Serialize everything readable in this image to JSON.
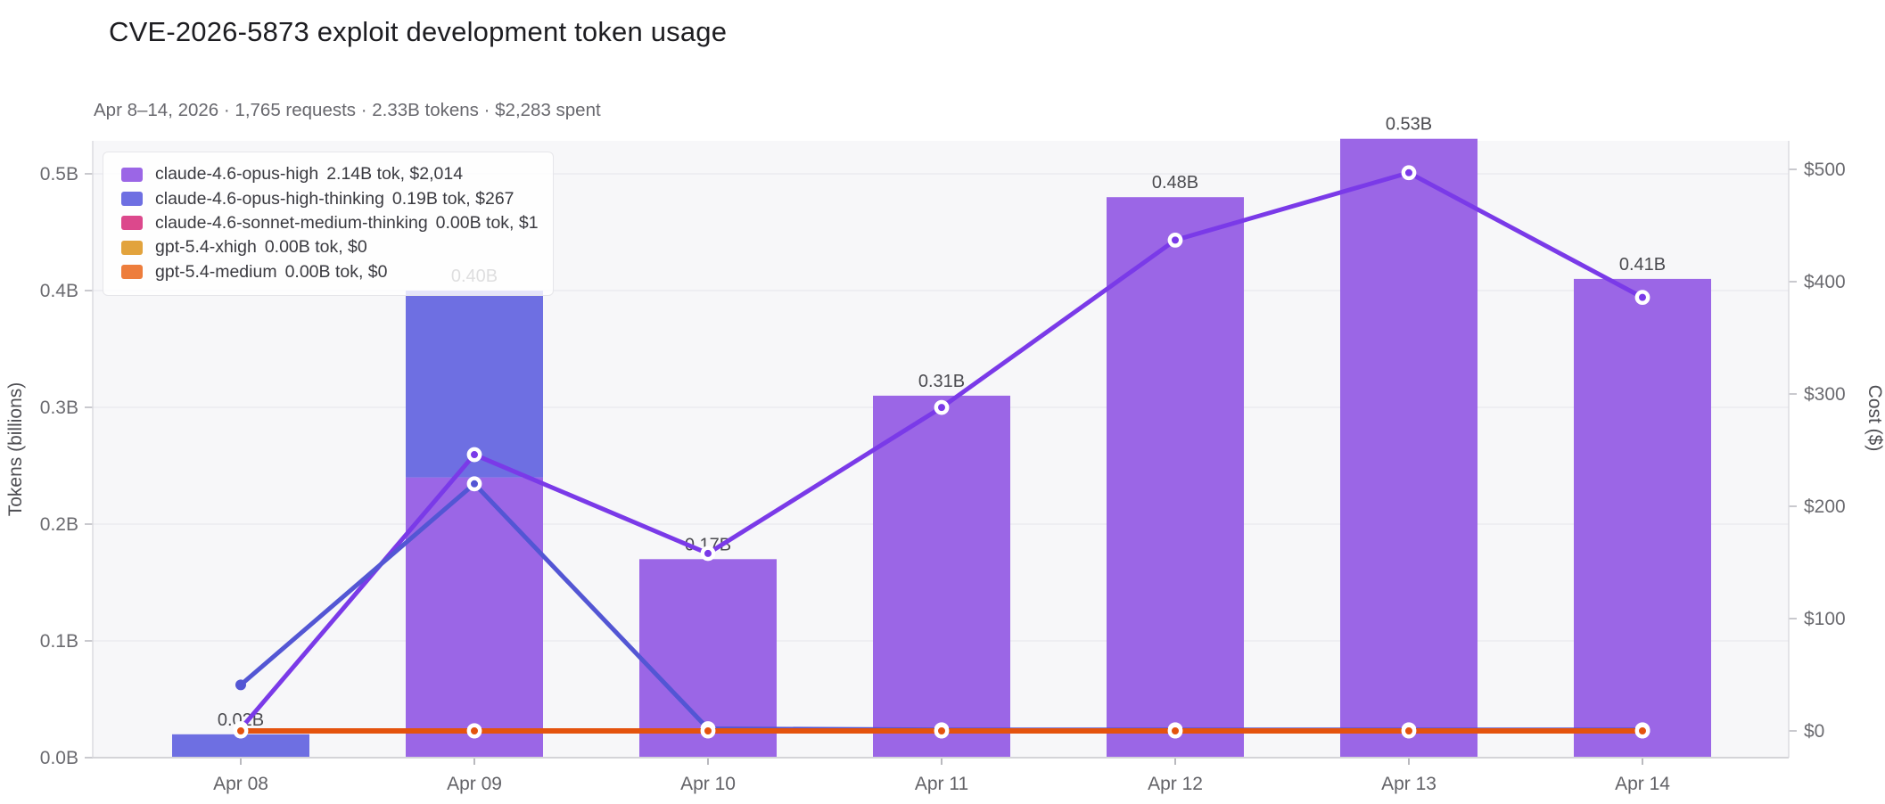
{
  "chart_data": {
    "type": "bar+line",
    "title": "CVE-2026-5873 exploit development token usage",
    "subtitle": "Apr 8–14, 2026  ·  1,765 requests  ·  2.33B tokens  ·  $2,283 spent",
    "categories": [
      "Apr 08",
      "Apr 09",
      "Apr 10",
      "Apr 11",
      "Apr 12",
      "Apr 13",
      "Apr 14"
    ],
    "bar_total_labels": [
      "0.02B",
      "0.40B",
      "0.17B",
      "0.31B",
      "0.48B",
      "0.53B",
      "0.41B"
    ],
    "y_left": {
      "label": "Tokens (billions)",
      "ticks": [
        "0.0B",
        "0.1B",
        "0.2B",
        "0.3B",
        "0.4B",
        "0.5B"
      ],
      "tick_values": [
        0.0,
        0.1,
        0.2,
        0.3,
        0.4,
        0.5
      ],
      "unit": "billions of tokens",
      "grid": true
    },
    "y_right": {
      "label": "Cost ($)",
      "ticks": [
        "$0",
        "$100",
        "$200",
        "$300",
        "$400",
        "$500"
      ],
      "tick_values": [
        0,
        100,
        200,
        300,
        400,
        500
      ],
      "unit": "USD",
      "grid": false
    },
    "legend_position": "top-left",
    "series": [
      {
        "name": "claude-4.6-opus-high",
        "legend_usage": "2.14B tok, $2,014",
        "bar_color": "#9b66e6",
        "line_color": "#7a3ae8",
        "tokens_billions": [
          0.0,
          0.24,
          0.17,
          0.31,
          0.48,
          0.53,
          0.41
        ],
        "cost_usd": [
          2,
          246,
          158,
          288,
          437,
          497,
          386
        ]
      },
      {
        "name": "claude-4.6-opus-high-thinking",
        "legend_usage": "0.19B tok, $267",
        "bar_color": "#6e6fe2",
        "line_color": "#5356d4",
        "tokens_billions": [
          0.02,
          0.16,
          0.0,
          0.0,
          0.0,
          0.0,
          0.0
        ],
        "cost_usd": [
          41,
          220,
          2,
          1,
          1,
          1,
          1
        ]
      },
      {
        "name": "claude-4.6-sonnet-medium-thinking",
        "legend_usage": "0.00B tok, $1",
        "bar_color": "#dc488c",
        "line_color": "#dc488c",
        "tokens_billions": [
          0.0,
          0.0,
          0.0,
          0.0,
          0.0,
          0.0,
          0.0
        ],
        "cost_usd": [
          0.1,
          0.2,
          0.2,
          0.1,
          0.1,
          0.2,
          0.1
        ]
      },
      {
        "name": "gpt-5.4-xhigh",
        "legend_usage": "0.00B tok, $0",
        "bar_color": "#e2a33d",
        "line_color": "#e2a33d",
        "tokens_billions": [
          0.0,
          0.0,
          0.0,
          0.0,
          0.0,
          0.0,
          0.0
        ],
        "cost_usd": [
          0,
          0,
          0,
          0,
          0,
          0,
          0
        ]
      },
      {
        "name": "gpt-5.4-medium",
        "legend_usage": "0.00B tok, $0",
        "bar_color": "#ed7d3c",
        "line_color": "#e4530e",
        "tokens_billions": [
          0.0,
          0.0,
          0.0,
          0.0,
          0.0,
          0.0,
          0.0
        ],
        "cost_usd": [
          0,
          0,
          0,
          0,
          0,
          0,
          0
        ]
      }
    ]
  }
}
